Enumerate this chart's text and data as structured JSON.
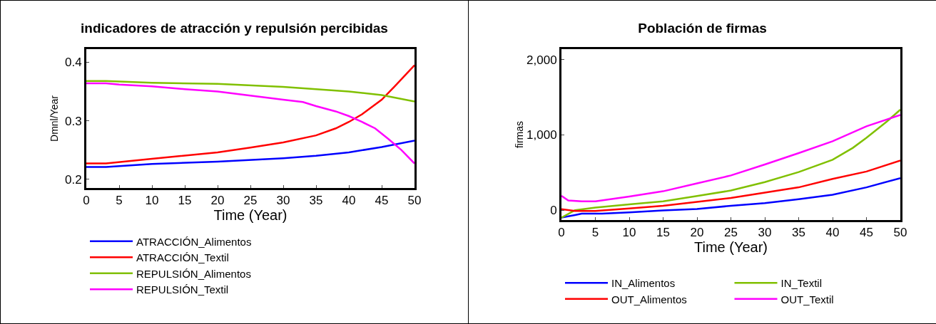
{
  "chart_data": [
    {
      "type": "line",
      "title": "indicadores de atracción y repulsión percibidas",
      "xlabel": "Time (Year)",
      "ylabel": "Dmnl/Year",
      "xlim": [
        0,
        50
      ],
      "xticks": [
        0,
        5,
        10,
        15,
        20,
        25,
        30,
        35,
        40,
        45,
        50
      ],
      "ylim": [
        0.185,
        0.4225
      ],
      "yticks": [
        0.2,
        0.3,
        0.4
      ],
      "grid": false,
      "legend": "bottom",
      "series": [
        {
          "name": "ATRACCIÓN_Alimentos",
          "color": "#0000ff",
          "x": [
            0,
            3,
            10,
            20,
            30,
            35,
            40,
            45,
            50
          ],
          "values": [
            0.221,
            0.221,
            0.226,
            0.23,
            0.236,
            0.24,
            0.246,
            0.255,
            0.266
          ]
        },
        {
          "name": "ATRACCIÓN_Textil",
          "color": "#ff0000",
          "x": [
            0,
            3,
            10,
            20,
            25,
            30,
            35,
            38,
            40,
            42,
            45,
            47,
            50
          ],
          "values": [
            0.227,
            0.227,
            0.235,
            0.246,
            0.254,
            0.263,
            0.275,
            0.287,
            0.298,
            0.311,
            0.336,
            0.359,
            0.395
          ]
        },
        {
          "name": "REPULSIÓN_Alimentos",
          "color": "#80c000",
          "x": [
            0,
            3,
            10,
            20,
            30,
            40,
            45,
            50
          ],
          "values": [
            0.368,
            0.368,
            0.365,
            0.363,
            0.358,
            0.35,
            0.344,
            0.333
          ]
        },
        {
          "name": "REPULSIÓN_Textil",
          "color": "#ff00ff",
          "x": [
            0,
            3,
            5,
            10,
            15,
            20,
            25,
            30,
            33,
            35,
            38,
            40,
            42,
            44,
            46,
            48,
            50
          ],
          "values": [
            0.364,
            0.364,
            0.362,
            0.359,
            0.354,
            0.35,
            0.343,
            0.336,
            0.332,
            0.325,
            0.316,
            0.308,
            0.298,
            0.287,
            0.269,
            0.25,
            0.227
          ]
        }
      ]
    },
    {
      "type": "line",
      "title": "Población de firmas",
      "xlabel": "Time (Year)",
      "ylabel": "firmas",
      "xlim": [
        0,
        50
      ],
      "xticks": [
        0,
        5,
        10,
        15,
        20,
        25,
        30,
        35,
        40,
        45,
        50
      ],
      "ylim": [
        -130,
        2140
      ],
      "yticks": [
        0,
        {
          "value": 1000,
          "label": "1,000"
        },
        {
          "value": 2000,
          "label": "2,000"
        }
      ],
      "grid": false,
      "legend": "bottom",
      "series": [
        {
          "name": "IN_Alimentos",
          "color": "#0000ff",
          "x": [
            0,
            2,
            3,
            6,
            10,
            15,
            20,
            25,
            30,
            35,
            40,
            45,
            50
          ],
          "values": [
            -98,
            -63,
            -45,
            -45,
            -28,
            -3,
            17,
            59,
            94,
            147,
            206,
            304,
            427
          ]
        },
        {
          "name": "IN_Textil",
          "color": "#80c000",
          "x": [
            0,
            2,
            5,
            10,
            15,
            20,
            25,
            30,
            35,
            40,
            43,
            45,
            48,
            50
          ],
          "values": [
            -98,
            0,
            35,
            77,
            119,
            189,
            262,
            374,
            507,
            671,
            829,
            962,
            1178,
            1336
          ]
        },
        {
          "name": "OUT_Alimentos",
          "color": "#ff0000",
          "x": [
            0,
            2,
            5,
            10,
            15,
            20,
            25,
            30,
            35,
            40,
            45,
            50
          ],
          "values": [
            14,
            -10,
            -10,
            24,
            59,
            112,
            164,
            234,
            304,
            416,
            514,
            661
          ]
        },
        {
          "name": "OUT_Textil",
          "color": "#ff00ff",
          "x": [
            0,
            1,
            3,
            5,
            10,
            15,
            20,
            25,
            30,
            35,
            40,
            45,
            50
          ],
          "values": [
            192,
            129,
            119,
            119,
            182,
            252,
            357,
            462,
            608,
            759,
            916,
            1115,
            1266
          ]
        }
      ]
    }
  ]
}
